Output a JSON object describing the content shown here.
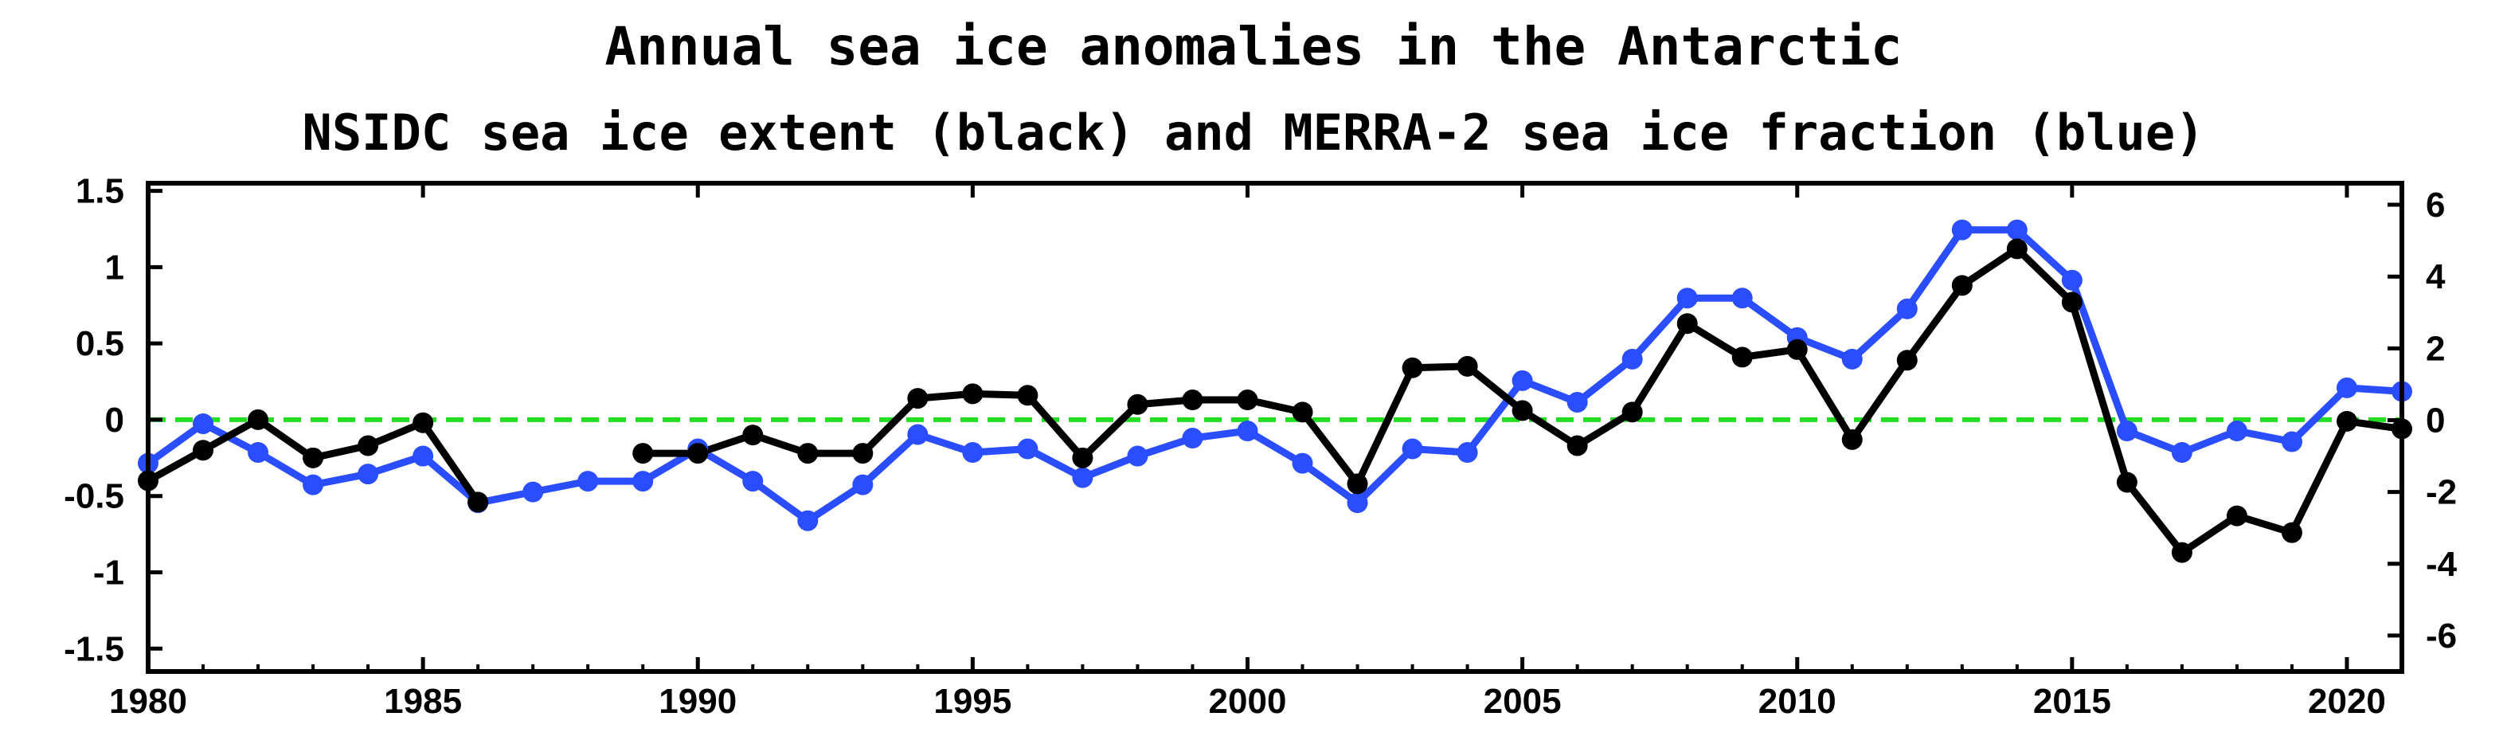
{
  "chart_data": {
    "type": "line",
    "title": "Annual sea ice anomalies in the Antarctic",
    "subtitle": "NSIDC sea ice extent (black) and MERRA-2 sea ice fraction (blue)",
    "xlabel": "",
    "ylabel": "",
    "xlim": [
      1980,
      2021
    ],
    "ylim": [
      -1.65,
      1.55
    ],
    "y2lim": [
      -7.0,
      6.6
    ],
    "x_ticks": [
      1980,
      1985,
      1990,
      1995,
      2000,
      2005,
      2010,
      2015,
      2020
    ],
    "y_ticks": [
      {
        "value": 1.5,
        "label": "1.5"
      },
      {
        "value": 1,
        "label": "1"
      },
      {
        "value": 0.5,
        "label": "0.5"
      },
      {
        "value": 0,
        "label": "0"
      },
      {
        "value": -0.5,
        "label": "-0.5"
      },
      {
        "value": -1,
        "label": "-1"
      },
      {
        "value": -1.5,
        "label": "-1.5"
      }
    ],
    "y2_ticks": [
      {
        "value": 6,
        "label": "6"
      },
      {
        "value": 4,
        "label": "4"
      },
      {
        "value": 2,
        "label": "2"
      },
      {
        "value": 0,
        "label": "0"
      },
      {
        "value": -2,
        "label": "-2"
      },
      {
        "value": -4,
        "label": "-4"
      },
      {
        "value": -6,
        "label": "-6"
      }
    ],
    "reference_line": {
      "y": 0,
      "color": "#22dd22",
      "style": "dashed"
    },
    "series": [
      {
        "name": "NSIDC sea ice extent",
        "color": "#000000",
        "axis": "left",
        "segments": [
          {
            "x": [
              1980,
              1981,
              1982,
              1983,
              1984,
              1985,
              1986
            ],
            "values": [
              -0.4,
              -0.2,
              0.0,
              -0.25,
              -0.17,
              -0.02,
              -0.54
            ]
          },
          {
            "x": [
              1989,
              1990,
              1991,
              1992,
              1993,
              1994,
              1995,
              1996,
              1997,
              1998,
              1999,
              2000,
              2001,
              2002,
              2003,
              2004,
              2005,
              2006,
              2007,
              2008,
              2009,
              2010,
              2011,
              2012,
              2013,
              2014,
              2015,
              2016,
              2017,
              2018,
              2019,
              2020,
              2021
            ],
            "values": [
              -0.22,
              -0.22,
              -0.1,
              -0.22,
              -0.22,
              0.14,
              0.17,
              0.16,
              -0.25,
              0.1,
              0.13,
              0.13,
              0.05,
              -0.42,
              0.34,
              0.35,
              0.06,
              -0.17,
              0.05,
              0.63,
              0.41,
              0.46,
              -0.13,
              0.39,
              0.88,
              1.12,
              0.77,
              -0.41,
              -0.87,
              -0.63,
              -0.74,
              -0.01,
              -0.06
            ]
          }
        ]
      },
      {
        "name": "MERRA-2 sea ice fraction",
        "color": "#2a4dff",
        "axis": "right",
        "segments": [
          {
            "x": [
              1980,
              1981,
              1982,
              1983,
              1984,
              1985,
              1986,
              1987,
              1988,
              1989,
              1990,
              1991,
              1992,
              1993,
              1994,
              1995,
              1996,
              1997,
              1998,
              1999,
              2000,
              2001,
              2002,
              2003,
              2004,
              2005,
              2006,
              2007,
              2008,
              2009,
              2010,
              2011,
              2012,
              2013,
              2014,
              2015,
              2016,
              2017,
              2018,
              2019,
              2020,
              2021
            ],
            "values": [
              -1.2,
              -0.1,
              -0.9,
              -1.8,
              -1.5,
              -1.0,
              -2.3,
              -2.0,
              -1.7,
              -1.7,
              -0.8,
              -1.7,
              -2.8,
              -1.8,
              -0.4,
              -0.9,
              -0.8,
              -1.6,
              -1.0,
              -0.5,
              -0.3,
              -1.2,
              -2.3,
              -0.8,
              -0.9,
              1.1,
              0.5,
              1.7,
              3.4,
              3.4,
              2.3,
              1.7,
              3.1,
              5.3,
              5.3,
              3.9,
              -0.3,
              -0.9,
              -0.3,
              -0.6,
              0.9,
              0.8
            ]
          }
        ]
      }
    ]
  }
}
